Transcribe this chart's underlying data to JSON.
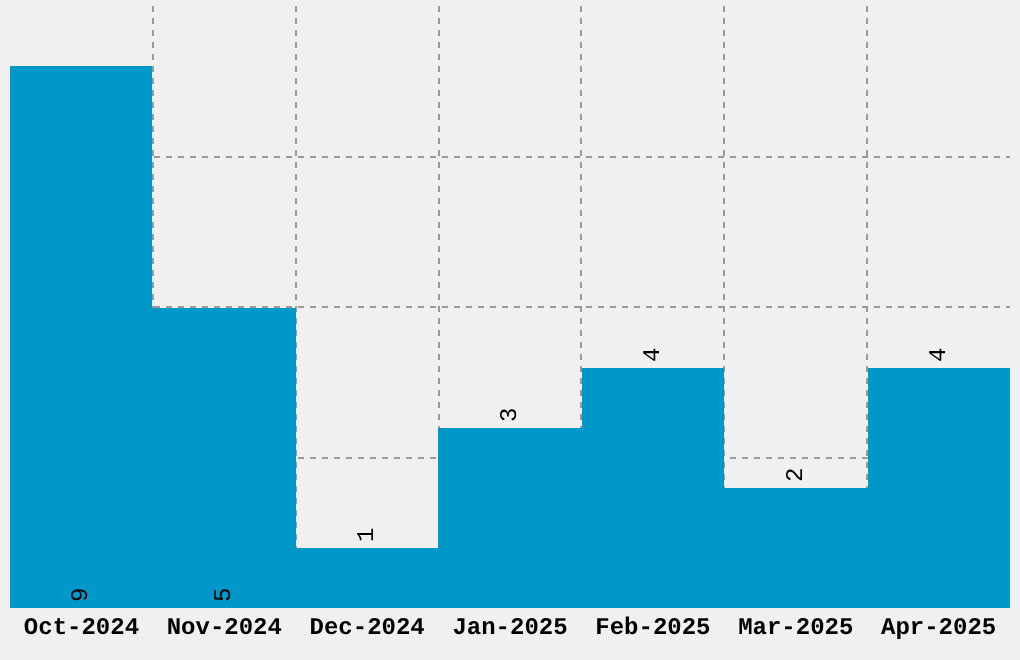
{
  "chart_data": {
    "type": "bar",
    "categories": [
      "Oct-2024",
      "Nov-2024",
      "Dec-2024",
      "Jan-2025",
      "Feb-2025",
      "Mar-2025",
      "Apr-2025"
    ],
    "values": [
      9,
      5,
      1,
      3,
      4,
      2,
      4
    ],
    "color": "#0098c9",
    "data_labels": true,
    "grid": true,
    "ylim": [
      0,
      10
    ],
    "yticks": [
      {
        "value": 2.5,
        "label": null
      },
      {
        "value": 5,
        "label": null
      },
      {
        "value": 7.5,
        "label": null
      }
    ],
    "tick_labels": "x"
  }
}
